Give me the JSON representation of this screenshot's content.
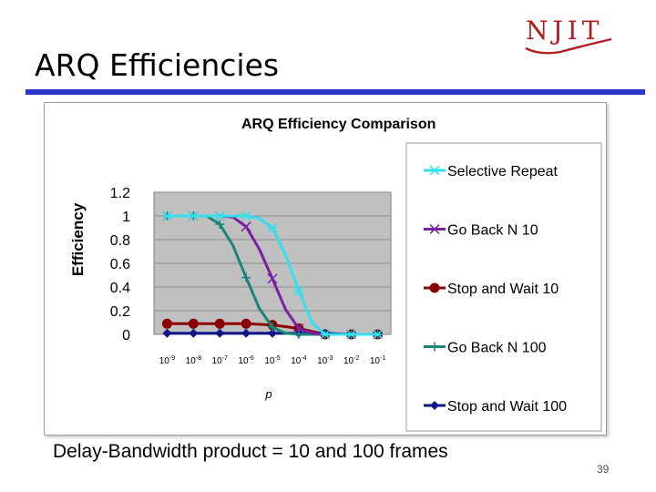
{
  "logo": {
    "text": "NJIT"
  },
  "slide": {
    "title": "ARQ Efficiencies",
    "caption": "Delay-Bandwidth product = 10 and 100 frames",
    "page_number": "39"
  },
  "colors": {
    "title_rule": "#2b35c9",
    "logo": "#b01e1e",
    "plot_bg": "#c0c0c0",
    "selective_repeat": "#33e0ee",
    "go_back_n_10": "#7b1fa2",
    "stop_and_wait_10": "#8b0000",
    "go_back_n_100": "#16867a",
    "stop_and_wait_100": "#12148a"
  },
  "chart_data": {
    "type": "line",
    "title": "ARQ Efficiency Comparison",
    "xlabel": "p",
    "ylabel": "Efficiency",
    "categories": [
      "10-9",
      "10-8",
      "10-7",
      "10-6",
      "10-5",
      "10-4",
      "10-3",
      "10-2",
      "10-1"
    ],
    "x_ticks": [
      {
        "base": "10",
        "exp": "-9"
      },
      {
        "base": "10",
        "exp": "-8"
      },
      {
        "base": "10",
        "exp": "-7"
      },
      {
        "base": "10",
        "exp": "-6"
      },
      {
        "base": "10",
        "exp": "-5"
      },
      {
        "base": "10",
        "exp": "-4"
      },
      {
        "base": "10",
        "exp": "-3"
      },
      {
        "base": "10",
        "exp": "-2"
      },
      {
        "base": "10",
        "exp": "-1"
      }
    ],
    "y_ticks": [
      "0",
      "0.2",
      "0.4",
      "0.6",
      "0.8",
      "1",
      "1.2"
    ],
    "ylim": [
      0,
      1.2
    ],
    "legend_position": "right",
    "series": [
      {
        "name": "Selective Repeat",
        "marker": "asterisk",
        "color_key": "selective_repeat",
        "x": [
          -9,
          -8.5,
          -8,
          -7.5,
          -7,
          -6.5,
          -6,
          -5.5,
          -5,
          -4.5,
          -4,
          -3.5,
          -3,
          -2,
          -1
        ],
        "values": [
          1,
          1,
          1,
          1,
          1,
          1,
          1,
          0.98,
          0.9,
          0.67,
          0.37,
          0.1,
          0,
          0,
          0
        ]
      },
      {
        "name": "Go Back N 10",
        "marker": "x",
        "color_key": "go_back_n_10",
        "x": [
          -9,
          -8.5,
          -8,
          -7.5,
          -7,
          -6.5,
          -6,
          -5.5,
          -5,
          -4.5,
          -4,
          -3.5,
          -3,
          -2,
          -1
        ],
        "values": [
          1,
          1,
          1,
          1,
          1,
          0.99,
          0.91,
          0.72,
          0.47,
          0.21,
          0.05,
          0.01,
          0,
          0,
          0
        ]
      },
      {
        "name": "Stop and Wait 10",
        "marker": "circle",
        "color_key": "stop_and_wait_10",
        "x": [
          -9,
          -8,
          -7,
          -6,
          -5,
          -4,
          -3,
          -2,
          -1
        ],
        "values": [
          0.09,
          0.09,
          0.09,
          0.09,
          0.08,
          0.05,
          0,
          0,
          0
        ]
      },
      {
        "name": "Go Back N 100",
        "marker": "plus",
        "color_key": "go_back_n_100",
        "x": [
          -9,
          -8.5,
          -8,
          -7.5,
          -7,
          -6.5,
          -6,
          -5.5,
          -5,
          -4.5,
          -4,
          -3,
          -2,
          -1
        ],
        "values": [
          1,
          1,
          1,
          1,
          0.93,
          0.75,
          0.48,
          0.22,
          0.06,
          0.01,
          0,
          0,
          0,
          0
        ]
      },
      {
        "name": "Stop and Wait 100",
        "marker": "diamond",
        "color_key": "stop_and_wait_100",
        "x": [
          -9,
          -8,
          -7,
          -6,
          -5,
          -4,
          -3,
          -2,
          -1
        ],
        "values": [
          0.01,
          0.01,
          0.01,
          0.01,
          0.01,
          0.01,
          0.01,
          0,
          0
        ]
      }
    ]
  }
}
